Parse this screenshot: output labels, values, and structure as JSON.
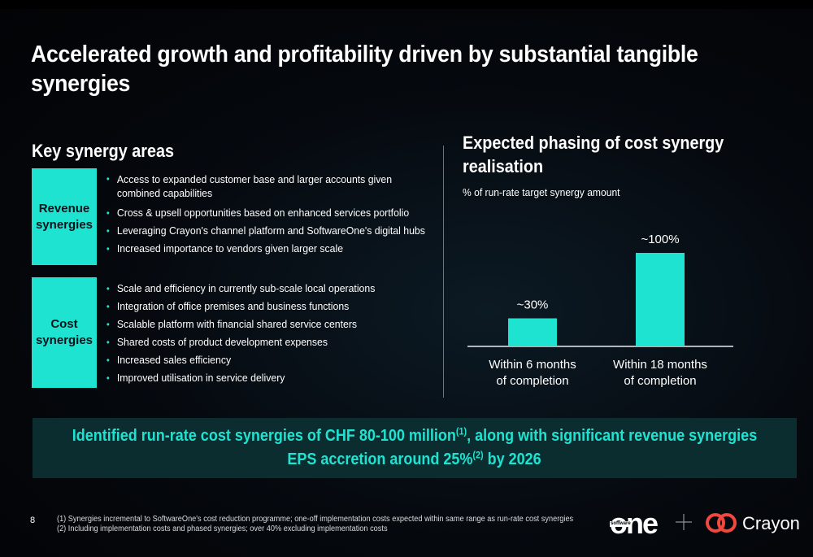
{
  "title": "Accelerated growth and profitability driven by substantial tangible synergies",
  "left": {
    "heading": "Key synergy areas",
    "revenue": {
      "label": "Revenue\nsynergies",
      "bullets": [
        "Access to expanded customer base and larger accounts given combined capabilities",
        "Cross & upsell opportunities based on enhanced services portfolio",
        "Leveraging Crayon's channel platform and SoftwareOne's digital hubs",
        "Increased importance to vendors given larger scale"
      ]
    },
    "cost": {
      "label": "Cost\nsynergies",
      "bullets": [
        "Scale and efficiency in currently sub-scale local operations",
        "Integration of office premises and business functions",
        "Scalable platform with financial shared service centers",
        "Shared costs of product development expenses",
        "Increased sales efficiency",
        "Improved utilisation in service delivery"
      ]
    }
  },
  "right": {
    "heading": "Expected phasing of cost synergy realisation",
    "subtitle": "% of run-rate target synergy amount"
  },
  "chart_data": {
    "type": "bar",
    "categories": [
      "Within 6 months of completion",
      "Within 18 months of completion"
    ],
    "category_lines": [
      [
        "Within 6 months",
        "of completion"
      ],
      [
        "Within 18 months",
        "of completion"
      ]
    ],
    "values": [
      30,
      100
    ],
    "data_labels": [
      "~30%",
      "~100%"
    ],
    "ylim": [
      0,
      100
    ],
    "bar_color": "#1fe3d1"
  },
  "banner": {
    "line1_pre": "Identified run-rate cost synergies of CHF 80-100 million",
    "line1_sup": "(1)",
    "line1_post": ", along with significant revenue synergies",
    "line2_pre": "EPS accretion around 25%",
    "line2_sup": "(2)",
    "line2_post": " by 2026",
    "color": "#1fe3d1"
  },
  "footer": {
    "page_number": "8",
    "footnotes": [
      "(1)   Synergies incremental to SoftwareOne's cost reduction programme; one-off implementation costs expected within same range as run-rate cost synergies",
      "(2)   Including implementation costs and phased synergies; over 40% excluding implementation costs"
    ],
    "logo_one_text": "one",
    "logo_one_small": "software",
    "logo_crayon_text": "Crayon",
    "crayon_color": "#f0473e"
  }
}
